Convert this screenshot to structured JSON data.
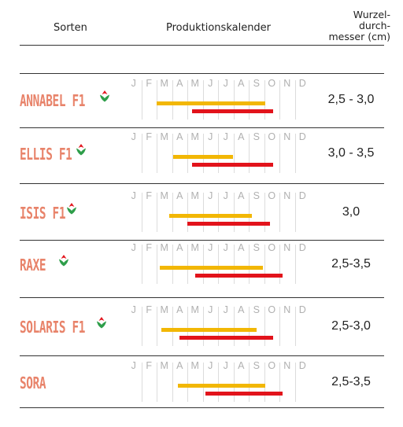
{
  "header": {
    "sorten": "Sorten",
    "kalender": "Produktionskalender",
    "wurzel_lines": [
      "Wurzel-",
      "durch-",
      "messer (cm)"
    ]
  },
  "months": [
    "J",
    "F",
    "M",
    "A",
    "M",
    "J",
    "J",
    "A",
    "S",
    "O",
    "N",
    "D"
  ],
  "colors": {
    "sowing": "#f2b705",
    "harvest": "#e2131b",
    "variety": "#e8836a"
  },
  "chart_data": {
    "type": "bar",
    "title": "",
    "xlabel": "Produktionskalender",
    "ylabel": "Sorten",
    "xlim": [
      0,
      12
    ],
    "x_ticks": [
      "J",
      "F",
      "M",
      "A",
      "M",
      "J",
      "J",
      "A",
      "S",
      "O",
      "N",
      "D"
    ],
    "grid": true,
    "series": [
      {
        "color": "#f2b705",
        "ranges": [
          [
            2.0,
            9.1
          ],
          [
            3.1,
            7.0
          ],
          [
            2.8,
            8.2
          ],
          [
            2.2,
            8.9
          ],
          [
            2.3,
            8.5
          ],
          [
            3.4,
            9.1
          ]
        ]
      },
      {
        "color": "#e2131b",
        "ranges": [
          [
            4.3,
            9.6
          ],
          [
            4.3,
            9.6
          ],
          [
            4.0,
            9.4
          ],
          [
            4.5,
            10.2
          ],
          [
            3.5,
            9.6
          ],
          [
            5.2,
            10.2
          ]
        ]
      }
    ],
    "categories": [
      "ANNABEL F1",
      "ELLIS F1",
      "ISIS F1",
      "RAXE",
      "SOLARIS F1",
      "SORA"
    ]
  },
  "rows": [
    {
      "name": "ANNABEL F1",
      "diameter": "2,5 - 3,0",
      "leaf": "leaf-icon"
    },
    {
      "name": "ELLIS F1",
      "diameter": "3,0 - 3,5",
      "leaf": "leaf-icon"
    },
    {
      "name": "ISIS F1",
      "diameter": "3,0",
      "leaf": "leaf-icon"
    },
    {
      "name": "RAXE",
      "diameter": "2,5-3,5",
      "leaf": "leaf-icon"
    },
    {
      "name": "SOLARIS F1",
      "diameter": "2,5-3,0",
      "leaf": "leaf-icon"
    },
    {
      "name": "SORA",
      "diameter": "2,5-3,5",
      "leaf": ""
    }
  ]
}
